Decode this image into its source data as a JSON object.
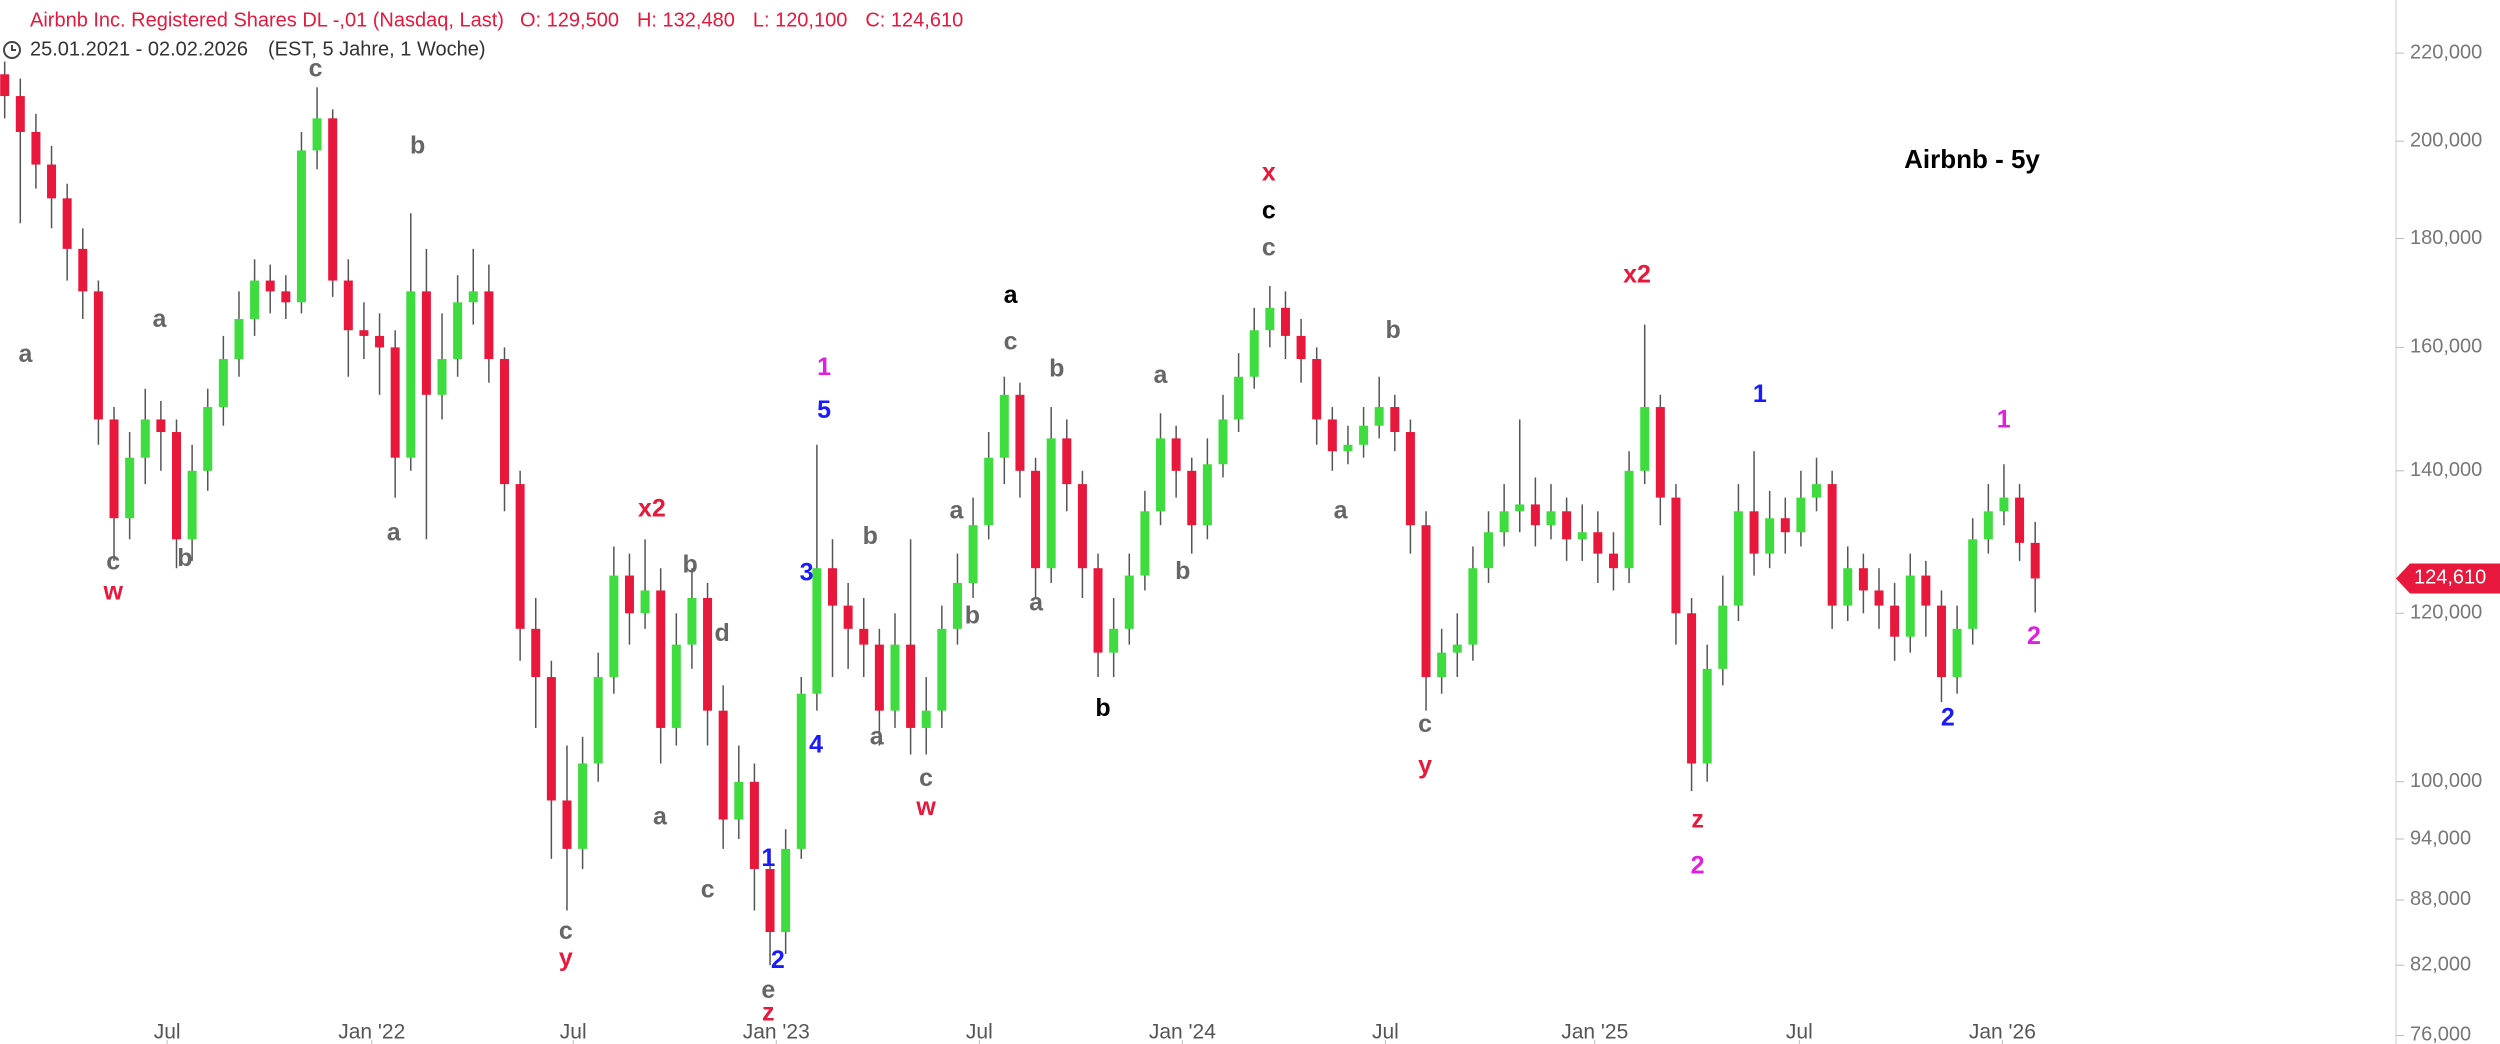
{
  "chart_data": {
    "type": "candlestick",
    "header": {
      "instrument": "Airbnb Inc. Registered Shares DL -,01 (Nasdaq, Last)",
      "quote": [
        "O: 129,500",
        "H: 132,480",
        "L: 120,100",
        "C: 124,610"
      ],
      "period": "25.01.2021 - 02.02.2026",
      "period_note": "(EST, 5 Jahre, 1 Woche)"
    },
    "title": "Airbnb - 5y",
    "log_scale": true,
    "up_color": "#3fdc3f",
    "down_color": "#e8173c",
    "wick_color": "#555555",
    "open": [
      215000,
      210000,
      202000,
      195000,
      188000,
      178000,
      170000,
      148000,
      133000,
      142000,
      148000,
      146000,
      130000,
      140000,
      150000,
      158000,
      165000,
      172000,
      170000,
      168000,
      198000,
      205000,
      172000,
      163000,
      162000,
      160000,
      142000,
      170000,
      152000,
      158000,
      168000,
      170000,
      158000,
      138000,
      118000,
      112000,
      98000,
      93000,
      102000,
      112000,
      125000,
      120000,
      123000,
      106000,
      116000,
      122000,
      108000,
      96000,
      100000,
      91000,
      85000,
      93000,
      110000,
      126000,
      121000,
      118000,
      116000,
      108000,
      116000,
      106000,
      108000,
      118000,
      124000,
      132000,
      142000,
      152000,
      140000,
      126000,
      145000,
      138000,
      126000,
      115000,
      118000,
      125000,
      134000,
      145000,
      140000,
      132000,
      141000,
      148000,
      155000,
      163000,
      167000,
      162000,
      158000,
      148000,
      143000,
      144000,
      147000,
      150000,
      146000,
      132000,
      112000,
      115000,
      116000,
      126000,
      131000,
      134000,
      135000,
      132000,
      134000,
      130000,
      131000,
      128000,
      126000,
      140000,
      150000,
      136000,
      120000,
      102000,
      113000,
      121000,
      134000,
      128000,
      133000,
      131000,
      136000,
      138000,
      121000,
      126000,
      123000,
      121000,
      117000,
      125000,
      121000,
      112000,
      118000,
      130000,
      134000,
      136000,
      129500
    ],
    "high": [
      218000,
      214000,
      206000,
      199000,
      191000,
      182000,
      172000,
      150000,
      146000,
      153000,
      151000,
      148000,
      144000,
      153000,
      162000,
      170000,
      176000,
      175000,
      173000,
      202000,
      212000,
      207000,
      176000,
      168000,
      166000,
      163000,
      185000,
      178000,
      166000,
      173000,
      178000,
      175000,
      160000,
      140000,
      122000,
      114000,
      104000,
      105000,
      115000,
      129000,
      128000,
      130000,
      126000,
      120000,
      126000,
      124000,
      111000,
      104000,
      102000,
      93000,
      95000,
      112000,
      144000,
      130000,
      124000,
      122000,
      118000,
      120000,
      130000,
      112000,
      121000,
      128000,
      136000,
      146000,
      155000,
      154000,
      142000,
      150000,
      148000,
      140000,
      128000,
      122000,
      128000,
      137000,
      149000,
      147000,
      142000,
      145000,
      152000,
      159000,
      167000,
      171000,
      170000,
      165000,
      160000,
      150000,
      147000,
      150000,
      155000,
      152000,
      148000,
      134000,
      118000,
      120000,
      129000,
      134000,
      138000,
      148000,
      139000,
      138000,
      136000,
      135000,
      134000,
      131000,
      143000,
      164000,
      152000,
      138000,
      122000,
      116000,
      125000,
      138000,
      143000,
      137000,
      136000,
      140000,
      142000,
      140000,
      129000,
      128000,
      126000,
      124000,
      128000,
      127000,
      123000,
      121000,
      133000,
      138000,
      141000,
      138000,
      132480
    ],
    "low": [
      205000,
      183000,
      190000,
      182000,
      172000,
      165000,
      144000,
      127000,
      130000,
      138000,
      140000,
      126000,
      127000,
      137000,
      147000,
      155000,
      162000,
      166000,
      165000,
      166000,
      194000,
      169000,
      155000,
      158000,
      152000,
      136000,
      140000,
      130000,
      148000,
      155000,
      164000,
      154000,
      134000,
      114000,
      106000,
      92000,
      87000,
      91000,
      100000,
      110000,
      116000,
      118000,
      102000,
      104000,
      113000,
      104000,
      93000,
      94000,
      87000,
      82000,
      83000,
      92000,
      108000,
      112000,
      113000,
      112000,
      104000,
      106000,
      103000,
      103000,
      106000,
      116000,
      122000,
      130000,
      138000,
      136000,
      122000,
      124000,
      134000,
      122000,
      112000,
      112000,
      116000,
      123000,
      132000,
      136000,
      128000,
      130000,
      139000,
      146000,
      153000,
      160000,
      158000,
      154000,
      144000,
      140000,
      141000,
      142000,
      145000,
      143000,
      128000,
      108000,
      110000,
      112000,
      114000,
      124000,
      129000,
      131000,
      129000,
      130000,
      127000,
      127000,
      124000,
      123000,
      124000,
      138000,
      132000,
      116000,
      99000,
      100000,
      111000,
      119000,
      125000,
      126000,
      128000,
      129000,
      134000,
      118000,
      119000,
      120000,
      118000,
      114000,
      115000,
      117000,
      109000,
      110000,
      116000,
      128000,
      132000,
      127000,
      120100
    ],
    "close": [
      210000,
      202000,
      195000,
      188000,
      178000,
      170000,
      148000,
      133000,
      142000,
      148000,
      146000,
      130000,
      140000,
      150000,
      158000,
      165000,
      172000,
      170000,
      168000,
      198000,
      205000,
      172000,
      163000,
      162000,
      160000,
      142000,
      170000,
      152000,
      158000,
      168000,
      170000,
      158000,
      138000,
      118000,
      112000,
      98000,
      93000,
      102000,
      112000,
      125000,
      120000,
      123000,
      106000,
      116000,
      122000,
      108000,
      96000,
      100000,
      91000,
      85000,
      93000,
      110000,
      126000,
      121000,
      118000,
      116000,
      108000,
      116000,
      106000,
      108000,
      118000,
      124000,
      132000,
      142000,
      152000,
      140000,
      126000,
      145000,
      138000,
      126000,
      115000,
      118000,
      125000,
      134000,
      145000,
      140000,
      132000,
      141000,
      148000,
      155000,
      163000,
      167000,
      162000,
      158000,
      148000,
      143000,
      144000,
      147000,
      150000,
      146000,
      132000,
      112000,
      115000,
      116000,
      126000,
      131000,
      134000,
      135000,
      132000,
      134000,
      130000,
      131000,
      128000,
      126000,
      140000,
      150000,
      136000,
      120000,
      102000,
      113000,
      121000,
      134000,
      128000,
      133000,
      131000,
      136000,
      138000,
      121000,
      126000,
      123000,
      121000,
      117000,
      125000,
      121000,
      112000,
      118000,
      130000,
      134000,
      136000,
      129500,
      124610
    ],
    "last_price_label": "124,610",
    "xlim": [
      -0.3,
      153.1
    ],
    "xticks": [
      {
        "value": 10.4,
        "label": "Jul"
      },
      {
        "value": 23.5,
        "label": "Jan '22"
      },
      {
        "value": 36.4,
        "label": "Jul"
      },
      {
        "value": 49.4,
        "label": "Jan '23"
      },
      {
        "value": 62.4,
        "label": "Jul"
      },
      {
        "value": 75.4,
        "label": "Jan '24"
      },
      {
        "value": 88.4,
        "label": "Jul"
      },
      {
        "value": 101.8,
        "label": "Jan '25"
      },
      {
        "value": 114.9,
        "label": "Jul"
      },
      {
        "value": 127.9,
        "label": "Jan '26"
      }
    ],
    "ylim": [
      75300,
      233000
    ],
    "yticks": [
      {
        "value": 76000,
        "label": "76,000"
      },
      {
        "value": 82000,
        "label": "82,000"
      },
      {
        "value": 88000,
        "label": "88,000"
      },
      {
        "value": 94000,
        "label": "94,000"
      },
      {
        "value": 100000,
        "label": "100,000"
      },
      {
        "value": 120000,
        "label": "120,000"
      },
      {
        "value": 140000,
        "label": "140,000"
      },
      {
        "value": 160000,
        "label": "160,000"
      },
      {
        "value": 180000,
        "label": "180,000"
      },
      {
        "value": 200000,
        "label": "200,000"
      },
      {
        "value": 220000,
        "label": "220,000"
      }
    ],
    "annotations": [
      {
        "text": "a",
        "color": "#666666"
      },
      {
        "text": "c",
        "color": "#666666"
      },
      {
        "text": "w",
        "color": "#e8173c"
      },
      {
        "text": "a",
        "color": "#666666"
      },
      {
        "text": "b",
        "color": "#666666"
      },
      {
        "text": "c",
        "color": "#666666"
      },
      {
        "text": "b",
        "color": "#666666"
      },
      {
        "text": "a",
        "color": "#666666"
      },
      {
        "text": "x2",
        "color": "#e8173c"
      },
      {
        "text": "b",
        "color": "#666666"
      },
      {
        "text": "d",
        "color": "#666666"
      },
      {
        "text": "a",
        "color": "#666666"
      },
      {
        "text": "c",
        "color": "#666666"
      },
      {
        "text": "c",
        "color": "#666666"
      },
      {
        "text": "y",
        "color": "#e8173c"
      },
      {
        "text": "1",
        "color": "#1a1aff"
      },
      {
        "text": "2",
        "color": "#1a1aff"
      },
      {
        "text": "e",
        "color": "#666666"
      },
      {
        "text": "z",
        "color": "#e8173c"
      },
      {
        "text": "3",
        "color": "#1a1aff"
      },
      {
        "text": "4",
        "color": "#1a1aff"
      },
      {
        "text": "5",
        "color": "#1a1aff"
      },
      {
        "text": "1",
        "color": "#e020e0"
      },
      {
        "text": "b",
        "color": "#666666"
      },
      {
        "text": "a",
        "color": "#666666"
      },
      {
        "text": "c",
        "color": "#666666"
      },
      {
        "text": "w",
        "color": "#e8173c"
      },
      {
        "text": "a",
        "color": "#666666"
      },
      {
        "text": "b",
        "color": "#666666"
      },
      {
        "text": "a",
        "color": "#000000"
      },
      {
        "text": "c",
        "color": "#666666"
      },
      {
        "text": "b",
        "color": "#666666"
      },
      {
        "text": "a",
        "color": "#666666"
      },
      {
        "text": "b",
        "color": "#000000"
      },
      {
        "text": "a",
        "color": "#666666"
      },
      {
        "text": "b",
        "color": "#666666"
      },
      {
        "text": "x",
        "color": "#e8173c"
      },
      {
        "text": "c",
        "color": "#000000"
      },
      {
        "text": "c",
        "color": "#666666"
      },
      {
        "text": "b",
        "color": "#666666"
      },
      {
        "text": "a",
        "color": "#666666"
      },
      {
        "text": "c",
        "color": "#666666"
      },
      {
        "text": "y",
        "color": "#e8173c"
      },
      {
        "text": "x2",
        "color": "#e8173c"
      },
      {
        "text": "z",
        "color": "#e8173c"
      },
      {
        "text": "2",
        "color": "#e020e0"
      },
      {
        "text": "1",
        "color": "#1a1aff"
      },
      {
        "text": "2",
        "color": "#1a1aff"
      },
      {
        "text": "1",
        "color": "#e020e0"
      },
      {
        "text": "2",
        "color": "#e020e0"
      }
    ]
  }
}
